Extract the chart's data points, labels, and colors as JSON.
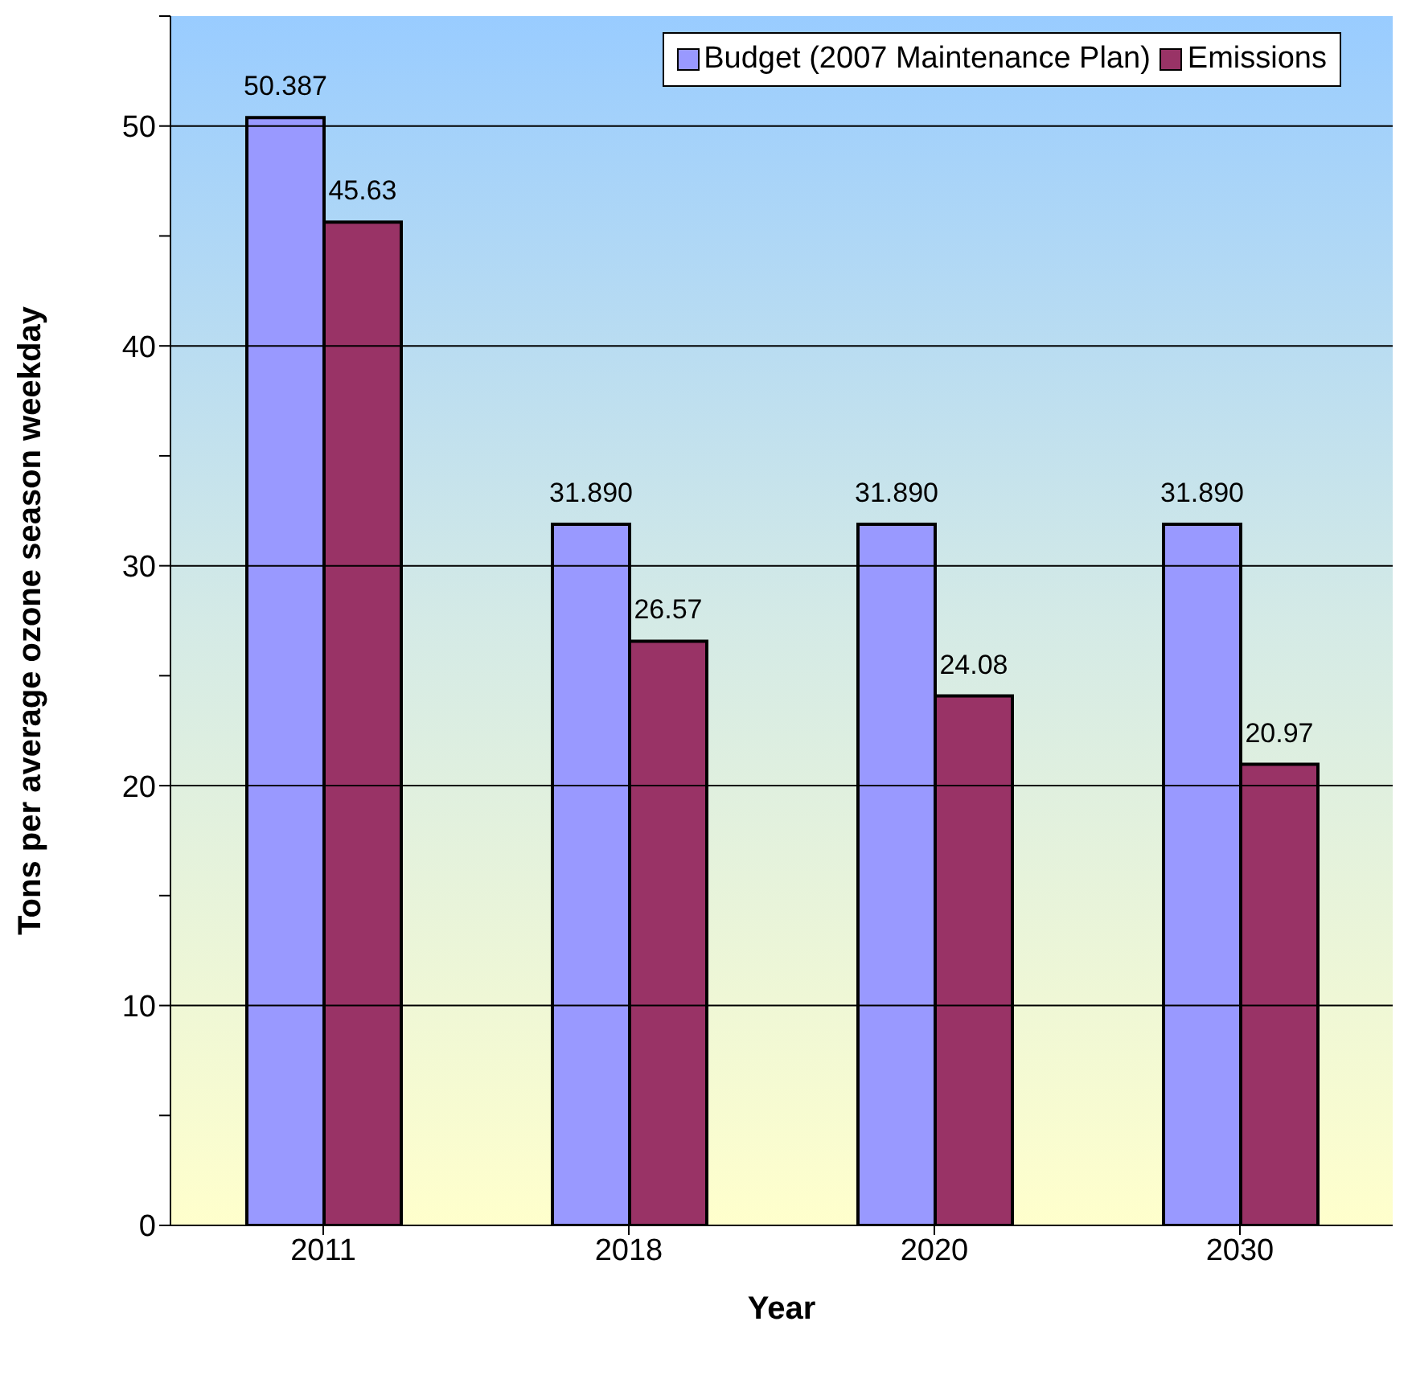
{
  "chart_data": {
    "type": "bar",
    "xlabel": "Year",
    "ylabel": "Tons per average ozone season weekday",
    "categories": [
      "2011",
      "2018",
      "2020",
      "2030"
    ],
    "series": [
      {
        "name": "Budget (2007 Maintenance Plan)",
        "color": "#9999ff",
        "values": [
          50.387,
          31.89,
          31.89,
          31.89
        ],
        "value_labels": [
          "50.387",
          "31.890",
          "31.890",
          "31.890"
        ]
      },
      {
        "name": "Emissions",
        "color": "#993366",
        "values": [
          45.63,
          26.57,
          24.08,
          20.97
        ],
        "value_labels": [
          "45.63",
          "26.57",
          "24.08",
          "20.97"
        ]
      }
    ],
    "ylim": [
      0,
      55
    ],
    "yticks": [
      0,
      {
        "value": 5,
        "label": null
      },
      10,
      {
        "value": 15,
        "label": null
      },
      20,
      {
        "value": 25,
        "label": null
      },
      30,
      {
        "value": 35,
        "label": null
      },
      40,
      {
        "value": 45,
        "label": null
      },
      50,
      {
        "value": 55,
        "label": null
      }
    ],
    "grid": "y",
    "legend": "top right"
  }
}
